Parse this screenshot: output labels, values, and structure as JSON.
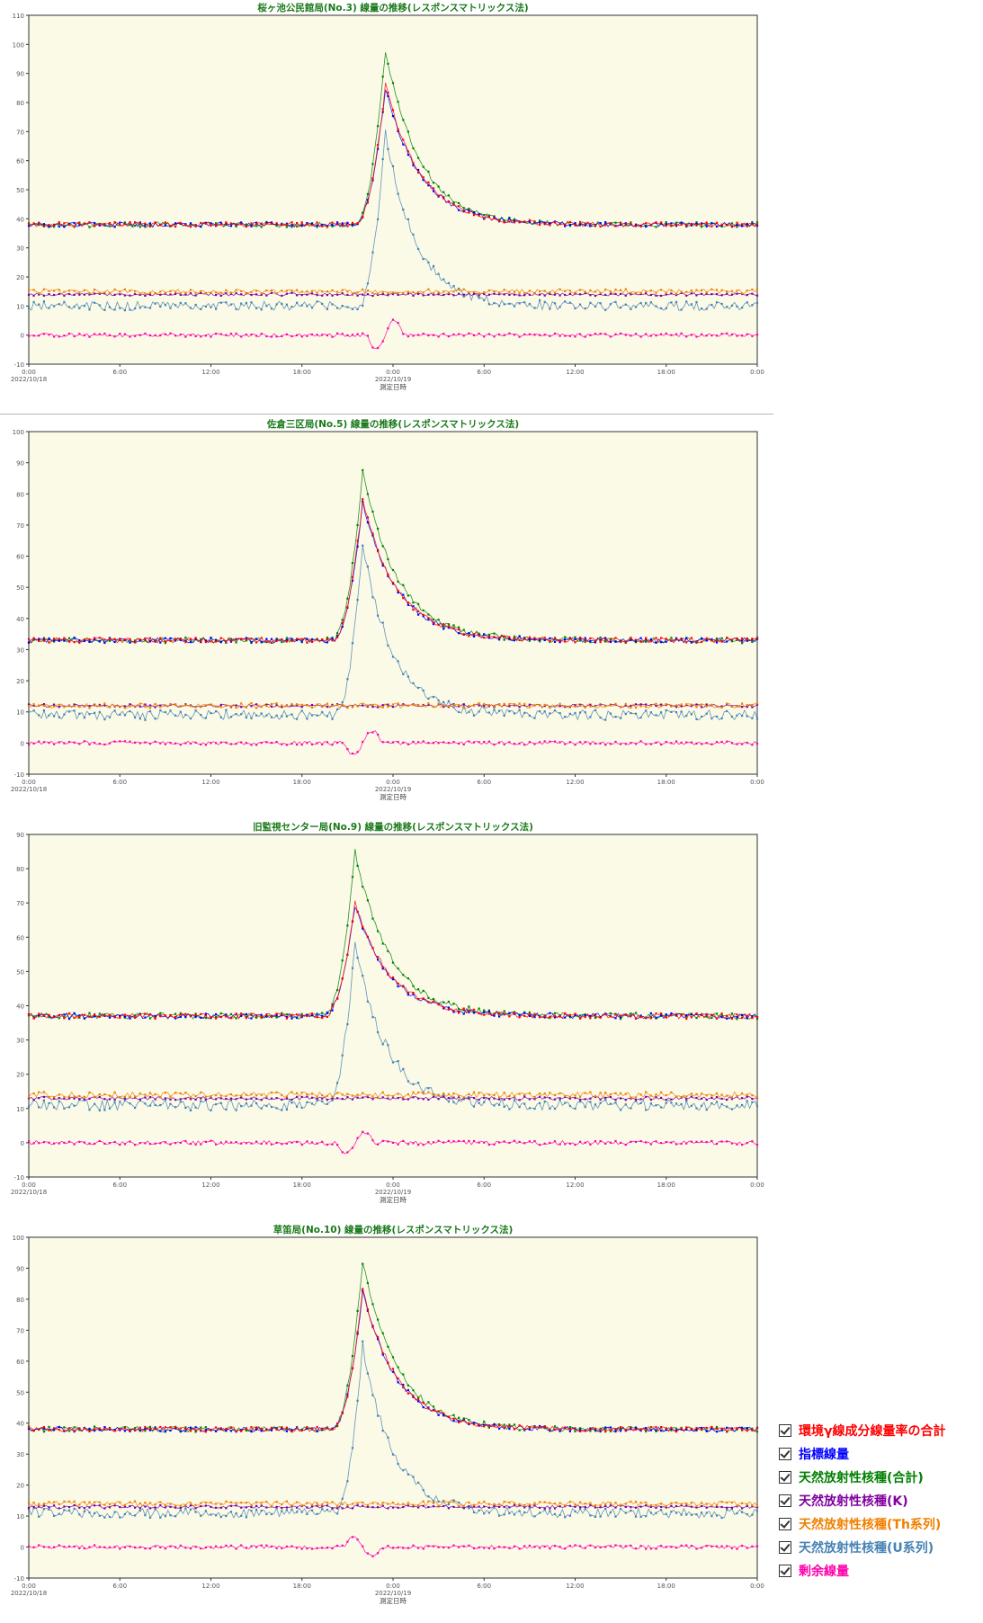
{
  "legend": {
    "items": [
      {
        "label": "環境γ線成分線量率の合計",
        "color": "#ff0000",
        "checked": true
      },
      {
        "label": "指標線量",
        "color": "#0000ff",
        "checked": true
      },
      {
        "label": "天然放射性核種(合計)",
        "color": "#008000",
        "checked": true
      },
      {
        "label": "天然放射性核種(K)",
        "color": "#8000a0",
        "checked": true
      },
      {
        "label": "天然放射性核種(Th系列)",
        "color": "#f08000",
        "checked": true
      },
      {
        "label": "天然放射性核種(U系列)",
        "color": "#4682b4",
        "checked": true
      },
      {
        "label": "剰余線量",
        "color": "#ff00aa",
        "checked": true
      }
    ]
  },
  "chart_data": [
    {
      "type": "line",
      "title": "桜ヶ池公民館局(No.3) 線量の推移(レスポンスマトリックス法)",
      "xlabel": "測定日時",
      "x_ticks": [
        "0:00|2022/10/18",
        "6:00",
        "12:00",
        "18:00",
        "0:00|2022/10/19",
        "6:00",
        "12:00",
        "18:00",
        "0:00"
      ],
      "ylim": [
        -10,
        110
      ],
      "y_ticks": [
        -10,
        0,
        10,
        20,
        30,
        40,
        50,
        60,
        70,
        80,
        90,
        100,
        110
      ],
      "x_range_hours": [
        0,
        48
      ],
      "peak_hour": 23.5,
      "baselines": {
        "total": 38,
        "index": 38,
        "natural_total": 38,
        "K": 14,
        "Th": 15,
        "U": 10,
        "residual": 0
      },
      "peaks": {
        "total": 86,
        "index": 85,
        "natural_total": 98,
        "K": 14,
        "Th": 15,
        "U": 70,
        "residual": -5
      },
      "series": [
        {
          "name": "環境γ線成分線量率の合計",
          "color": "#ff0000"
        },
        {
          "name": "指標線量",
          "color": "#0000ff"
        },
        {
          "name": "天然放射性核種(合計)",
          "color": "#008000"
        },
        {
          "name": "天然放射性核種(K)",
          "color": "#8000a0"
        },
        {
          "name": "天然放射性核種(Th系列)",
          "color": "#f08000"
        },
        {
          "name": "天然放射性核種(U系列)",
          "color": "#4682b4"
        },
        {
          "name": "剰余線量",
          "color": "#ff00aa"
        }
      ]
    },
    {
      "type": "line",
      "title": "佐倉三区局(No.5) 線量の推移(レスポンスマトリックス法)",
      "xlabel": "測定日時",
      "x_ticks": [
        "0:00|2022/10/18",
        "6:00",
        "12:00",
        "18:00",
        "0:00|2022/10/19",
        "6:00",
        "12:00",
        "18:00",
        "0:00"
      ],
      "ylim": [
        -10,
        100
      ],
      "y_ticks": [
        -10,
        0,
        10,
        20,
        30,
        40,
        50,
        60,
        70,
        80,
        90,
        100
      ],
      "x_range_hours": [
        0,
        48
      ],
      "peak_hour": 22.0,
      "baselines": {
        "total": 33,
        "index": 33,
        "natural_total": 33,
        "K": 12,
        "Th": 12,
        "U": 9,
        "residual": 0
      },
      "peaks": {
        "total": 78,
        "index": 77,
        "natural_total": 87,
        "K": 12,
        "Th": 12,
        "U": 64,
        "residual": -4
      },
      "series": [
        {
          "name": "環境γ線成分線量率の合計",
          "color": "#ff0000"
        },
        {
          "name": "指標線量",
          "color": "#0000ff"
        },
        {
          "name": "天然放射性核種(合計)",
          "color": "#008000"
        },
        {
          "name": "天然放射性核種(K)",
          "color": "#8000a0"
        },
        {
          "name": "天然放射性核種(Th系列)",
          "color": "#f08000"
        },
        {
          "name": "天然放射性核種(U系列)",
          "color": "#4682b4"
        },
        {
          "name": "剰余線量",
          "color": "#ff00aa"
        }
      ]
    },
    {
      "type": "line",
      "title": "旧監視センター局(No.9) 線量の推移(レスポンスマトリックス法)",
      "xlabel": "測定日時",
      "x_ticks": [
        "0:00|2022/10/18",
        "6:00",
        "12:00",
        "18:00",
        "0:00|2022/10/19",
        "6:00",
        "12:00",
        "18:00",
        "0:00"
      ],
      "ylim": [
        -10,
        90
      ],
      "y_ticks": [
        -10,
        0,
        10,
        20,
        30,
        40,
        50,
        60,
        70,
        80,
        90
      ],
      "x_range_hours": [
        0,
        48
      ],
      "peak_hour": 21.5,
      "baselines": {
        "total": 37,
        "index": 37,
        "natural_total": 37,
        "K": 13,
        "Th": 14,
        "U": 11,
        "residual": 0
      },
      "peaks": {
        "total": 70,
        "index": 69,
        "natural_total": 85,
        "K": 13,
        "Th": 14,
        "U": 59,
        "residual": -3
      },
      "series": [
        {
          "name": "環境γ線成分線量率の合計",
          "color": "#ff0000"
        },
        {
          "name": "指標線量",
          "color": "#0000ff"
        },
        {
          "name": "天然放射性核種(合計)",
          "color": "#008000"
        },
        {
          "name": "天然放射性核種(K)",
          "color": "#8000a0"
        },
        {
          "name": "天然放射性核種(Th系列)",
          "color": "#f08000"
        },
        {
          "name": "天然放射性核種(U系列)",
          "color": "#4682b4"
        },
        {
          "name": "剰余線量",
          "color": "#ff00aa"
        }
      ]
    },
    {
      "type": "line",
      "title": "草笛局(No.10) 線量の推移(レスポンスマトリックス法)",
      "xlabel": "測定日時",
      "x_ticks": [
        "0:00|2022/10/18",
        "6:00",
        "12:00",
        "18:00",
        "0:00|2022/10/19",
        "6:00",
        "12:00",
        "18:00",
        "0:00"
      ],
      "ylim": [
        -10,
        100
      ],
      "y_ticks": [
        -10,
        0,
        10,
        20,
        30,
        40,
        50,
        60,
        70,
        80,
        90,
        100
      ],
      "x_range_hours": [
        0,
        48
      ],
      "peak_hour": 22.0,
      "baselines": {
        "total": 38,
        "index": 38,
        "natural_total": 38,
        "K": 13,
        "Th": 14,
        "U": 11,
        "residual": 0
      },
      "peaks": {
        "total": 83,
        "index": 82,
        "natural_total": 92,
        "K": 13,
        "Th": 14,
        "U": 65,
        "residual": 3
      },
      "series": [
        {
          "name": "環境γ線成分線量率の合計",
          "color": "#ff0000"
        },
        {
          "name": "指標線量",
          "color": "#0000ff"
        },
        {
          "name": "天然放射性核種(合計)",
          "color": "#008000"
        },
        {
          "name": "天然放射性核種(K)",
          "color": "#8000a0"
        },
        {
          "name": "天然放射性核種(Th系列)",
          "color": "#f08000"
        },
        {
          "name": "天然放射性核種(U系列)",
          "color": "#4682b4"
        },
        {
          "name": "剰余線量",
          "color": "#ff00aa"
        }
      ]
    }
  ]
}
